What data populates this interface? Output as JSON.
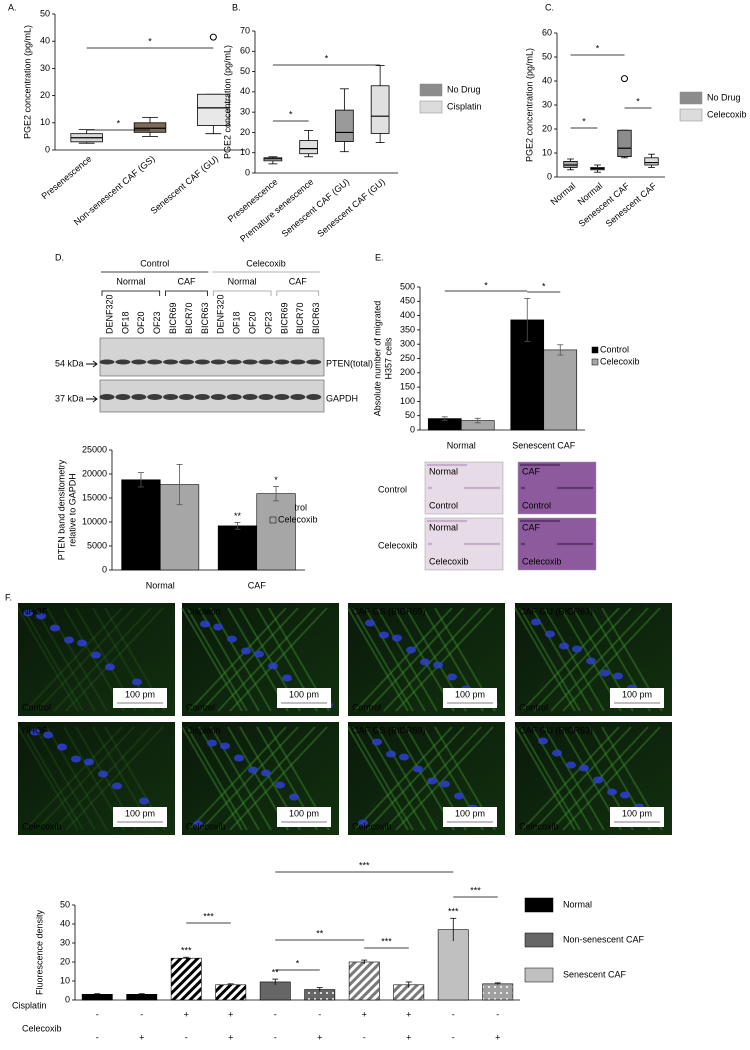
{
  "chart_data": [
    {
      "type": "box",
      "panel": "A.",
      "ylabel": "PGE2 concentration (pg/mL)",
      "categories": [
        "Presenescence",
        "Non-senescent CAF (GS)",
        "Senescent CAF (GU)"
      ],
      "boxes": [
        {
          "min": 2.5,
          "q1": 3,
          "median": 4.5,
          "q3": 6,
          "max": 7.5,
          "outliers": []
        },
        {
          "min": 5,
          "q1": 6.5,
          "median": 8,
          "q3": 10,
          "max": 12,
          "outliers": []
        },
        {
          "min": 6,
          "q1": 9,
          "median": 15.5,
          "q3": 20.5,
          "max": 20.5,
          "outliers": [
            41.5
          ]
        }
      ],
      "colors": [
        "#d9d9d9",
        "#7d6b58",
        "#e8e8e8"
      ],
      "ylim": [
        0,
        50
      ],
      "yticks": [
        0,
        10,
        20,
        30,
        40,
        50
      ],
      "significance": [
        "*",
        "*"
      ]
    },
    {
      "type": "box",
      "panel": "B.",
      "ylabel": "PGE2 concentration (pg/mL)",
      "categories": [
        "Presenescence",
        "Premature senescence",
        "Senescent CAF (GU)",
        "Senescent CAF (GU)"
      ],
      "boxes": [
        {
          "min": 4.5,
          "q1": 6,
          "median": 7,
          "q3": 7.5,
          "max": 8,
          "outliers": []
        },
        {
          "min": 8,
          "q1": 9.5,
          "median": 12,
          "q3": 16,
          "max": 21,
          "outliers": []
        },
        {
          "min": 10.5,
          "q1": 15.5,
          "median": 20,
          "q3": 31,
          "max": 41.5,
          "outliers": []
        },
        {
          "min": 15,
          "q1": 19.5,
          "median": 28,
          "q3": 43,
          "max": 53,
          "outliers": []
        }
      ],
      "colors": [
        "#cfcfcf",
        "#e0e0e0",
        "#9a9a9a",
        "#e0e0e0"
      ],
      "legend": [
        {
          "name": "No Drug",
          "color": "#8c8c8c"
        },
        {
          "name": "Cisplatin",
          "color": "#dcdcdc"
        }
      ],
      "ylim": [
        0,
        70
      ],
      "yticks": [
        0,
        10,
        20,
        30,
        40,
        50,
        60,
        70
      ],
      "significance": [
        "*",
        "*"
      ]
    },
    {
      "type": "box",
      "panel": "C.",
      "ylabel": "PGE2 concentration (pg/mL)",
      "categories": [
        "Normal",
        "Normal",
        "Senescent CAF",
        "Senescent CAF"
      ],
      "boxes": [
        {
          "min": 3,
          "q1": 4,
          "median": 5,
          "q3": 6.5,
          "max": 7.5,
          "outliers": []
        },
        {
          "min": 2,
          "q1": 3,
          "median": 3.5,
          "q3": 4,
          "max": 5,
          "outliers": []
        },
        {
          "min": 8,
          "q1": 8.5,
          "median": 12,
          "q3": 19.5,
          "max": 19.5,
          "outliers": [
            41
          ]
        },
        {
          "min": 4,
          "q1": 5,
          "median": 6,
          "q3": 8,
          "max": 9.5,
          "outliers": []
        }
      ],
      "colors": [
        "#a6a6a6",
        "#dcdcdc",
        "#8c8c8c",
        "#dcdcdc"
      ],
      "legend": [
        {
          "name": "No Drug",
          "color": "#8c8c8c"
        },
        {
          "name": "Celecoxib",
          "color": "#dcdcdc"
        }
      ],
      "ylim": [
        0,
        60
      ],
      "yticks": [
        0,
        10,
        20,
        30,
        40,
        50,
        60
      ],
      "significance": [
        "*",
        "*",
        "*"
      ]
    },
    {
      "type": "groupbar",
      "ylabel": [
        "PTEN band densitometry",
        "relative to GAPDH"
      ],
      "categories": [
        "Normal",
        "CAF"
      ],
      "series": [
        {
          "name": "Control",
          "color": "#000000",
          "values": [
            18800,
            9200
          ],
          "errors": [
            1500,
            700
          ],
          "labels": [
            null,
            "**"
          ]
        },
        {
          "name": "Celecoxib",
          "color": "#a6a6a6",
          "values": [
            17800,
            15900
          ],
          "errors": [
            4200,
            1500
          ],
          "labels": [
            null,
            "*"
          ]
        }
      ],
      "ylim": [
        0,
        25000
      ],
      "yticks": [
        0,
        5000,
        10000,
        15000,
        20000,
        25000
      ]
    },
    {
      "type": "groupbar",
      "panel": "E.",
      "ylabel": [
        "Absolute number of migrated",
        "H357 cells"
      ],
      "categories": [
        "Normal",
        "Senescent CAF"
      ],
      "series": [
        {
          "name": "Control",
          "color": "#000000",
          "values": [
            40,
            385
          ],
          "errors": [
            6,
            75
          ]
        },
        {
          "name": "Celecoxib",
          "color": "#a6a6a6",
          "values": [
            33,
            280
          ],
          "errors": [
            8,
            18
          ]
        }
      ],
      "ylim": [
        0,
        500
      ],
      "yticks": [
        0,
        50,
        100,
        150,
        200,
        250,
        300,
        350,
        400,
        450,
        500
      ],
      "significance": [
        "*",
        "*"
      ]
    },
    {
      "type": "bar",
      "ylabel": "Fluorescence density",
      "values": [
        3,
        3,
        22,
        8,
        9.5,
        5.5,
        20,
        8,
        37,
        8.5
      ],
      "errors": [
        0.3,
        0.3,
        0.5,
        0.5,
        1.5,
        1,
        1,
        1.5,
        6,
        0.5
      ],
      "colors": [
        "#000000",
        "#000000",
        "#000000",
        "#000000",
        "#666666",
        "#666666",
        "#7a7a7a",
        "#7a7a7a",
        "#c0c0c0",
        "#a0a0a0"
      ],
      "patterns": [
        "solid",
        "solid",
        "hatch",
        "hatch",
        "solid",
        "dots",
        "hatch",
        "hatch",
        "solid",
        "dots"
      ],
      "bar_labels": [
        null,
        null,
        "***",
        null,
        "**",
        null,
        null,
        null,
        "***",
        null
      ],
      "legend": [
        {
          "name": "Normal",
          "color": "#000000"
        },
        {
          "name": "Non-senescent CAF",
          "color": "#666666"
        },
        {
          "name": "Senescent CAF",
          "color": "#c0c0c0"
        }
      ],
      "conditions": [
        {
          "name": "Cisplatin",
          "marks": [
            "-",
            "-",
            "+",
            "+",
            "-",
            "-",
            "+",
            "+",
            "-",
            "-"
          ]
        },
        {
          "name": "Celecoxib",
          "marks": [
            "-",
            "+",
            "-",
            "+",
            "-",
            "+",
            "-",
            "+",
            "-",
            "+"
          ]
        }
      ],
      "ylim": [
        0,
        50
      ],
      "yticks": [
        0,
        10,
        20,
        30,
        40,
        50
      ],
      "significance": [
        "***",
        "***",
        "**",
        "*",
        "***",
        "***"
      ]
    }
  ],
  "panel_d_blot": {
    "panel": "D.",
    "groups": [
      {
        "label": "Control",
        "subgroups": [
          "Normal",
          "CAF"
        ]
      },
      {
        "label": "Celecoxib",
        "subgroups": [
          "Normal",
          "CAF"
        ]
      }
    ],
    "lanes": [
      "DENF320",
      "OF18",
      "OF20",
      "OF23",
      "BICR69",
      "BICR70",
      "BICR63",
      "DENF320",
      "OF18",
      "OF20",
      "OF23",
      "BICR69",
      "BICR70",
      "BICR63"
    ],
    "rows": [
      {
        "size": "54 kDa",
        "label": "PTEN(total)"
      },
      {
        "size": "37 kDa",
        "label": "GAPDH"
      }
    ]
  },
  "panel_e_images": {
    "rows": [
      {
        "label": "Control",
        "cells": [
          {
            "top": "Normal",
            "bottom": "Control"
          },
          {
            "top": "CAF",
            "bottom": "Control"
          }
        ]
      },
      {
        "label": "Celecoxib",
        "cells": [
          {
            "top": "Normal",
            "bottom": "Celecoxib"
          },
          {
            "top": "CAF",
            "bottom": "Celecoxib"
          }
        ]
      }
    ]
  },
  "panel_f_images": {
    "panel": "F.",
    "columns": [
      "NHOF",
      "Cisplatin",
      "CAF GS (BICR69)",
      "CAF GU (BICR63)"
    ],
    "rows": [
      "Control",
      "Celecoxib"
    ],
    "scale": "100 pm"
  }
}
